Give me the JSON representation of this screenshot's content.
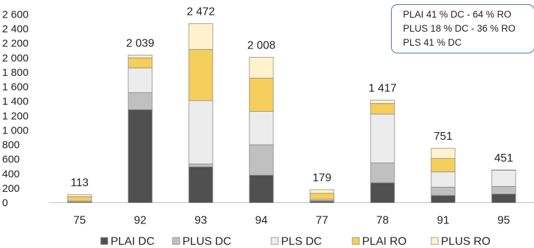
{
  "chart_data": {
    "type": "bar",
    "stacked": true,
    "categories": [
      "75",
      "92",
      "93",
      "94",
      "77",
      "78",
      "91",
      "95"
    ],
    "series": [
      {
        "name": "PLAI DC",
        "color": "#505050",
        "values": [
          5,
          1285,
          495,
          380,
          20,
          275,
          100,
          120
        ]
      },
      {
        "name": "PLUS DC",
        "color": "#c0c0c0",
        "values": [
          8,
          235,
          40,
          420,
          10,
          275,
          115,
          105
        ]
      },
      {
        "name": "PLS DC",
        "color": "#ececec",
        "values": [
          10,
          340,
          875,
          460,
          15,
          675,
          210,
          225
        ]
      },
      {
        "name": "PLAI RO",
        "color": "#f5cf5c",
        "values": [
          60,
          140,
          705,
          460,
          85,
          145,
          185,
          0
        ]
      },
      {
        "name": "PLUS RO",
        "color": "#fff2cc",
        "values": [
          30,
          39,
          357,
          288,
          49,
          47,
          141,
          1
        ]
      }
    ],
    "totals": [
      "113",
      "2 039",
      "2 472",
      "2 008",
      "179",
      "1 417",
      "751",
      "451"
    ],
    "y_ticks": [
      "0",
      "200",
      "400",
      "600",
      "800",
      "1 000",
      "1 200",
      "1 400",
      "1 600",
      "1 800",
      "2 000",
      "2 200",
      "2 400",
      "2 600"
    ],
    "ylim": [
      0,
      2600
    ],
    "grid": false,
    "legend_position": "bottom",
    "annotations": [
      "PLAI 41 % DC - 64 % RO",
      "PLUS 18 % DC - 36 % RO",
      "PLS 41 % DC"
    ]
  }
}
